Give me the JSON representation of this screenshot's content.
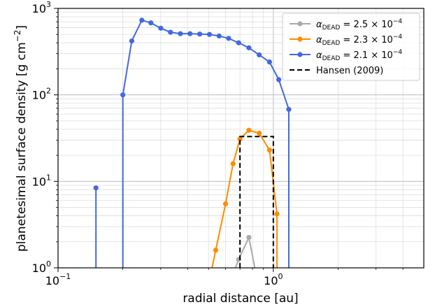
{
  "chart_data": {
    "type": "line",
    "xlabel": "radial distance [au]",
    "ylabel": "planetesimal surface density [g cm",
    "ylabel_sup": "−2",
    "ylabel_end": "]",
    "xscale": "log",
    "yscale": "log",
    "xlim": [
      0.1,
      5
    ],
    "ylim": [
      1,
      1000
    ],
    "grid": true,
    "legend_position": "top-right",
    "x_ticks": [
      {
        "value": 0.1,
        "base": "10",
        "exp": "−1"
      },
      {
        "value": 1,
        "base": "10",
        "exp": "0"
      }
    ],
    "y_ticks": [
      {
        "value": 1,
        "base": "10",
        "exp": "0"
      },
      {
        "value": 10,
        "base": "10",
        "exp": "1"
      },
      {
        "value": 100,
        "base": "10",
        "exp": "2"
      },
      {
        "value": 1000,
        "base": "10",
        "exp": "3"
      }
    ],
    "series": [
      {
        "name": "α_DEAD = 2.5 × 10^−4",
        "legend_alpha": "α",
        "legend_sub": "DEAD",
        "legend_value": " = 2.5 × 10",
        "legend_exp": "−4",
        "color": "#aaaaaa",
        "style": "line-marker",
        "x": [
          0.61,
          0.69,
          0.77,
          0.86
        ],
        "y": [
          0.55,
          1.25,
          2.25,
          0.55
        ]
      },
      {
        "name": "α_DEAD = 2.3 × 10^−4",
        "legend_alpha": "α",
        "legend_sub": "DEAD",
        "legend_value": " = 2.3 × 10",
        "legend_exp": "−4",
        "color": "#ff8c00",
        "style": "line-marker",
        "x": [
          0.49,
          0.54,
          0.6,
          0.65,
          0.7,
          0.77,
          0.86,
          0.96,
          1.04
        ],
        "y": [
          0.5,
          1.6,
          5.5,
          16,
          31,
          39,
          36,
          23,
          4.2
        ],
        "drop_to_floor": true
      },
      {
        "name": "α_DEAD = 2.1 × 10^−4",
        "legend_alpha": "α",
        "legend_sub": "DEAD",
        "legend_value": " = 2.1 × 10",
        "legend_exp": "−4",
        "color": "#4169e1",
        "style": "line-marker",
        "x": [
          0.2,
          0.22,
          0.245,
          0.27,
          0.3,
          0.333,
          0.37,
          0.41,
          0.455,
          0.505,
          0.56,
          0.62,
          0.69,
          0.77,
          0.86,
          0.96,
          1.06,
          1.18
        ],
        "y": [
          100,
          420,
          730,
          680,
          590,
          530,
          510,
          510,
          505,
          500,
          480,
          450,
          400,
          350,
          290,
          240,
          150,
          68
        ],
        "drop_to_floor": true,
        "isolated": [
          {
            "x": 0.15,
            "y": 8.4
          }
        ]
      },
      {
        "name": "Hansen (2009)",
        "color": "#000000",
        "style": "dashed",
        "x": [
          0.7,
          0.7,
          1.0,
          1.0
        ],
        "y": [
          1,
          33,
          33,
          1
        ]
      }
    ]
  }
}
